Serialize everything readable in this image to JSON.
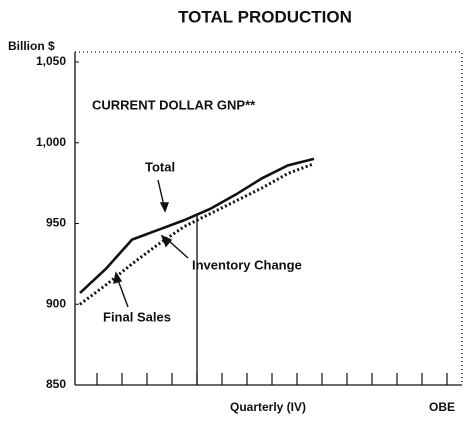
{
  "chart_data": {
    "type": "line",
    "title": "TOTAL PRODUCTION",
    "y_label": "Billion $",
    "x_label": "Quarterly (IV)",
    "source": "OBE",
    "annotations": [
      "CURRENT DOLLAR GNP**",
      "Total",
      "Inventory Change",
      "Final Sales"
    ],
    "categories": [
      null,
      null,
      null,
      null,
      null,
      null,
      null,
      null,
      null,
      null
    ],
    "series": [
      {
        "name": "Total",
        "color": "#111111",
        "style": "solid",
        "values": [
          907,
          922,
          940,
          946,
          952,
          959,
          968,
          978,
          986,
          990
        ]
      },
      {
        "name": "Final Sales",
        "color": "#111111",
        "style": "dotted",
        "values": [
          900,
          912,
          925,
          937,
          948,
          956,
          964,
          972,
          981,
          987
        ]
      }
    ],
    "ylim": [
      850,
      1050
    ],
    "yticks": [
      850,
      900,
      950,
      {
        "value": 1000,
        "label": "1,000"
      },
      {
        "value": 1050,
        "label": "1,050"
      }
    ]
  }
}
